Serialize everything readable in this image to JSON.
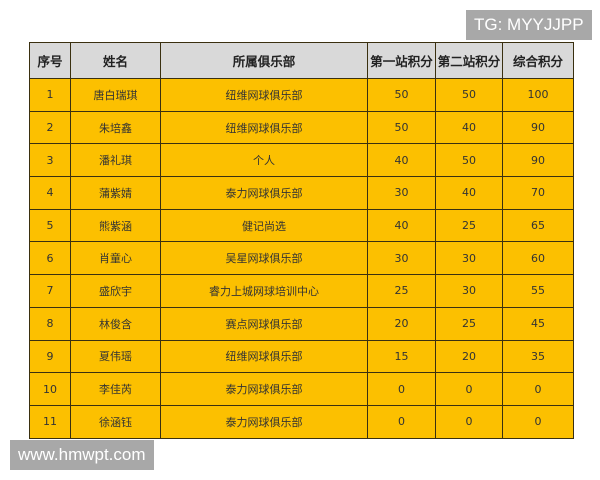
{
  "watermark_top": "TG: MYYJJPP",
  "watermark_bottom": "www.hmwpt.com",
  "table": {
    "headers": [
      "序号",
      "姓名",
      "所属俱乐部",
      "第一站积分",
      "第二站积分",
      "综合积分"
    ],
    "rows": [
      [
        "1",
        "唐白瑞琪",
        "纽维网球俱乐部",
        "50",
        "50",
        "100"
      ],
      [
        "2",
        "朱培鑫",
        "纽维网球俱乐部",
        "50",
        "40",
        "90"
      ],
      [
        "3",
        "潘礼琪",
        "个人",
        "40",
        "50",
        "90"
      ],
      [
        "4",
        "蒲紫婧",
        "泰力网球俱乐部",
        "30",
        "40",
        "70"
      ],
      [
        "5",
        "熊紫涵",
        "健记尚选",
        "40",
        "25",
        "65"
      ],
      [
        "6",
        "肖童心",
        "吴星网球俱乐部",
        "30",
        "30",
        "60"
      ],
      [
        "7",
        "盛欣宇",
        "睿力上城网球培训中心",
        "25",
        "30",
        "55"
      ],
      [
        "8",
        "林俊含",
        "赛点网球俱乐部",
        "20",
        "25",
        "45"
      ],
      [
        "9",
        "夏伟瑶",
        "纽维网球俱乐部",
        "15",
        "20",
        "35"
      ],
      [
        "10",
        "李佳芮",
        "泰力网球俱乐部",
        "0",
        "0",
        "0"
      ],
      [
        "11",
        "徐涵钰",
        "泰力网球俱乐部",
        "0",
        "0",
        "0"
      ]
    ]
  },
  "colors": {
    "header_bg": "#d9d9d9",
    "row_bg": "#fcc000"
  }
}
